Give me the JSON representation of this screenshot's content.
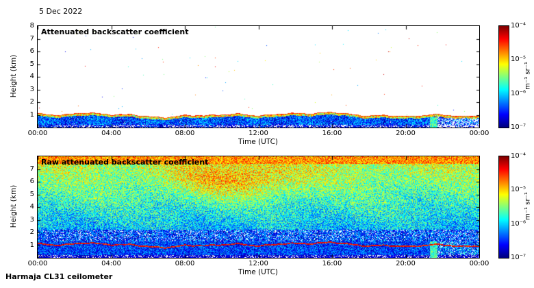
{
  "page": {
    "date_label": "5 Dec 2022",
    "footer_label": "Harmaja CL31 ceilometer"
  },
  "colors": {
    "background": "#ffffff",
    "frame": "#000000",
    "colormap": "jet",
    "below_range": "#ffffff"
  },
  "chart_data": [
    {
      "type": "heatmap",
      "title": "Attenuated backscatter coefficient",
      "xlabel": "Time (UTC)",
      "ylabel": "Height (km)",
      "x_range_hours": [
        0,
        24
      ],
      "x_tick_labels": [
        "00:00",
        "04:00",
        "08:00",
        "12:00",
        "16:00",
        "20:00",
        "00:00"
      ],
      "y_range_km": [
        0,
        8
      ],
      "y_tick_labels": [
        8,
        7,
        6,
        5,
        4,
        3,
        2,
        1
      ],
      "colorbar": {
        "ticks": [
          "10⁻⁴",
          "10⁻⁵",
          "10⁻⁶",
          "10⁻⁷"
        ],
        "unit": "m⁻¹ sr⁻¹",
        "scale": "log10",
        "range_log10": [
          -7,
          -4
        ],
        "colormap": "jet"
      },
      "features": {
        "boundary_layer_top_km": {
          "typical": 1.0,
          "range": [
            0.7,
            1.3
          ]
        },
        "layer_cap": "thin red/orange high-backscatter line at boundary layer top",
        "mixed_layer": "dense blue aerosol backscatter (~10^-6.5) below ~1 km, darkest near surface",
        "clear_air_above": "white (below 10^-7) with sparse scattered colored noise pixels up to 8 km",
        "precip_or_fog_streak": {
          "hour_utc": 21.5,
          "description": "green high-backscatter column below ~0.8 km"
        },
        "broken_layer_after_hour": 21.7
      }
    },
    {
      "type": "heatmap",
      "title": "Raw attenuated backscatter coefficient",
      "xlabel": "Time (UTC)",
      "ylabel": "Height (km)",
      "x_range_hours": [
        0,
        24
      ],
      "x_tick_labels": [
        "00:00",
        "04:00",
        "08:00",
        "12:00",
        "16:00",
        "20:00",
        "00:00"
      ],
      "y_range_km": [
        0,
        8
      ],
      "y_tick_labels": [
        7,
        6,
        5,
        4,
        3,
        2,
        1
      ],
      "colorbar": {
        "ticks": [
          "10⁻⁴",
          "10⁻⁵",
          "10⁻⁶",
          "10⁻⁷"
        ],
        "unit": "m⁻¹ sr⁻¹",
        "scale": "log10",
        "range_log10": [
          -7,
          -4
        ],
        "colormap": "jet"
      },
      "features": {
        "noise": "uncorrected full-field rainbow speckle noise increasing with height",
        "top_band_km": [
          7.4,
          8
        ],
        "top_band": "orange/red noise band (~10^-4.8) near 7.5-8 km",
        "mid_levels": "green/cyan speckle (~10^-5.5) between ~2 and 7.4 km",
        "elevated_orange_region": {
          "hours_utc": [
            7,
            13
          ],
          "height_km": [
            5,
            7
          ],
          "description": "stronger noise ~10^-5"
        },
        "boundary_layer": "blue band below ~1.3 km with white dropouts and a dark-red line at layer top ~1 km",
        "precip_or_fog_streak": {
          "hour_utc": 21.5
        }
      }
    }
  ]
}
